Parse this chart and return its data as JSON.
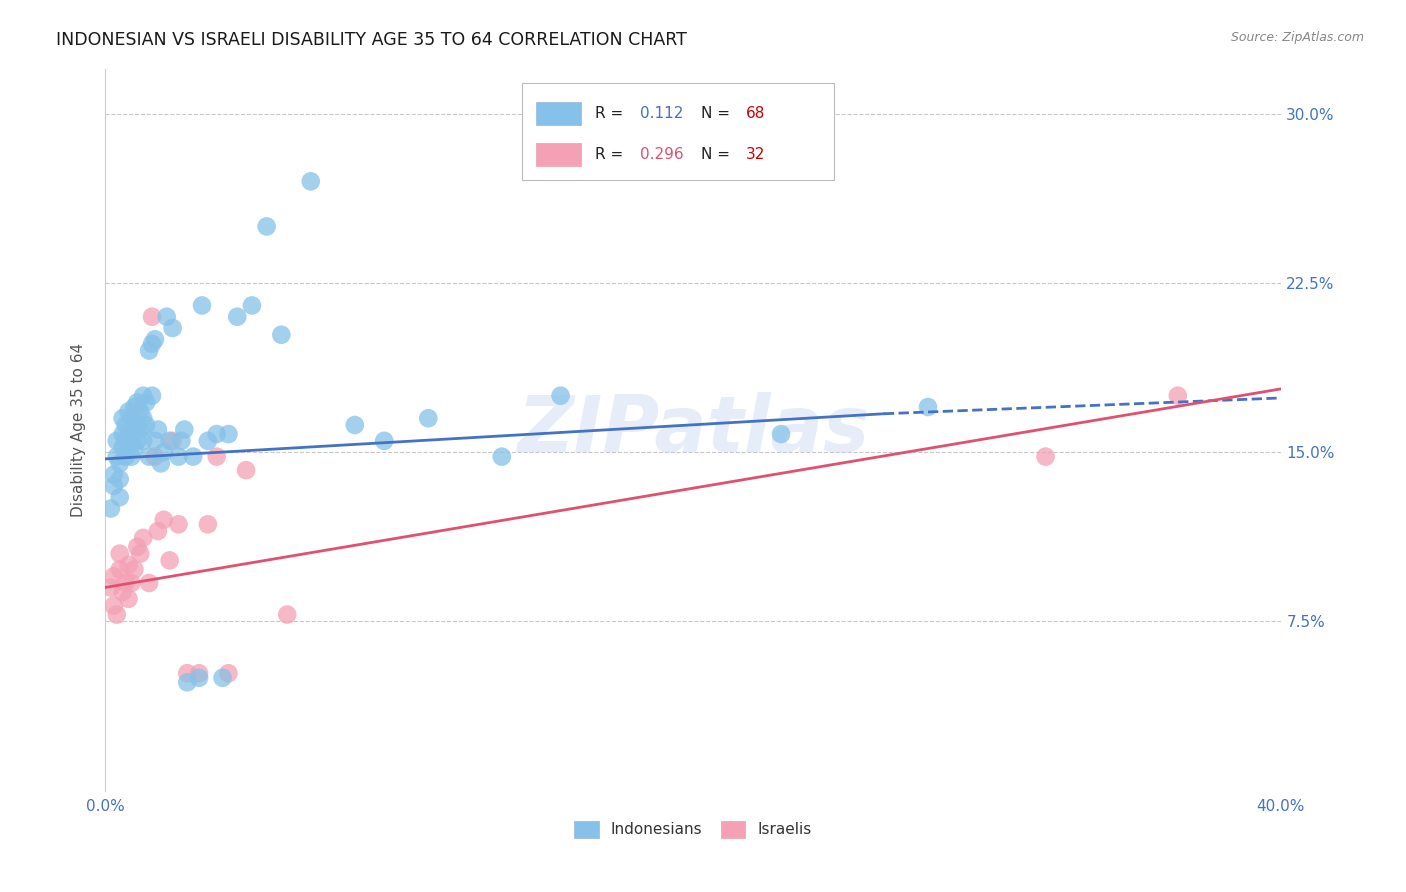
{
  "title": "INDONESIAN VS ISRAELI DISABILITY AGE 35 TO 64 CORRELATION CHART",
  "source": "Source: ZipAtlas.com",
  "ylabel": "Disability Age 35 to 64",
  "xlim": [
    0.0,
    0.4
  ],
  "ylim": [
    0.0,
    0.32
  ],
  "xticks": [
    0.0,
    0.05,
    0.1,
    0.15,
    0.2,
    0.25,
    0.3,
    0.35,
    0.4
  ],
  "yticks": [
    0.0,
    0.075,
    0.15,
    0.225,
    0.3
  ],
  "background_color": "#ffffff",
  "grid_color": "#c8c8c8",
  "indonesian_color": "#85C1E8",
  "israeli_color": "#F4A0B5",
  "indonesian_line_color": "#4472C4",
  "israeli_line_color": "#E05070",
  "watermark": "ZIPatlas",
  "legend_R_indo": "0.112",
  "legend_N_indo": "68",
  "legend_R_isr": "0.296",
  "legend_N_isr": "32",
  "indo_x": [
    0.002,
    0.003,
    0.003,
    0.004,
    0.004,
    0.005,
    0.005,
    0.005,
    0.006,
    0.006,
    0.006,
    0.007,
    0.007,
    0.007,
    0.008,
    0.008,
    0.008,
    0.009,
    0.009,
    0.009,
    0.01,
    0.01,
    0.01,
    0.011,
    0.011,
    0.011,
    0.012,
    0.012,
    0.013,
    0.013,
    0.013,
    0.014,
    0.014,
    0.015,
    0.015,
    0.016,
    0.016,
    0.017,
    0.017,
    0.018,
    0.019,
    0.02,
    0.021,
    0.022,
    0.023,
    0.025,
    0.026,
    0.027,
    0.028,
    0.03,
    0.032,
    0.033,
    0.035,
    0.038,
    0.04,
    0.042,
    0.045,
    0.05,
    0.055,
    0.06,
    0.07,
    0.085,
    0.095,
    0.11,
    0.135,
    0.155,
    0.23,
    0.28
  ],
  "indo_y": [
    0.125,
    0.135,
    0.14,
    0.148,
    0.155,
    0.13,
    0.138,
    0.145,
    0.152,
    0.158,
    0.165,
    0.148,
    0.155,
    0.162,
    0.152,
    0.158,
    0.168,
    0.148,
    0.155,
    0.165,
    0.152,
    0.16,
    0.17,
    0.155,
    0.162,
    0.172,
    0.16,
    0.168,
    0.155,
    0.165,
    0.175,
    0.162,
    0.172,
    0.148,
    0.195,
    0.175,
    0.198,
    0.155,
    0.2,
    0.16,
    0.145,
    0.15,
    0.21,
    0.155,
    0.205,
    0.148,
    0.155,
    0.16,
    0.048,
    0.148,
    0.05,
    0.215,
    0.155,
    0.158,
    0.05,
    0.158,
    0.21,
    0.215,
    0.25,
    0.202,
    0.27,
    0.162,
    0.155,
    0.165,
    0.148,
    0.175,
    0.158,
    0.17
  ],
  "isr_x": [
    0.002,
    0.003,
    0.003,
    0.004,
    0.005,
    0.005,
    0.006,
    0.007,
    0.008,
    0.008,
    0.009,
    0.01,
    0.011,
    0.012,
    0.013,
    0.015,
    0.016,
    0.017,
    0.018,
    0.02,
    0.022,
    0.023,
    0.025,
    0.028,
    0.032,
    0.035,
    0.038,
    0.042,
    0.048,
    0.062,
    0.32,
    0.365
  ],
  "isr_y": [
    0.09,
    0.082,
    0.095,
    0.078,
    0.098,
    0.105,
    0.088,
    0.092,
    0.1,
    0.085,
    0.092,
    0.098,
    0.108,
    0.105,
    0.112,
    0.092,
    0.21,
    0.148,
    0.115,
    0.12,
    0.102,
    0.155,
    0.118,
    0.052,
    0.052,
    0.118,
    0.148,
    0.052,
    0.142,
    0.078,
    0.148,
    0.175
  ],
  "indo_trend_x0": 0.0,
  "indo_trend_x1": 0.265,
  "indo_trend_x2": 0.4,
  "indo_trend_y0": 0.147,
  "indo_trend_y1": 0.167,
  "indo_trend_y2": 0.174,
  "isr_trend_x0": 0.0,
  "isr_trend_x1": 0.4,
  "isr_trend_y0": 0.09,
  "isr_trend_y1": 0.178
}
